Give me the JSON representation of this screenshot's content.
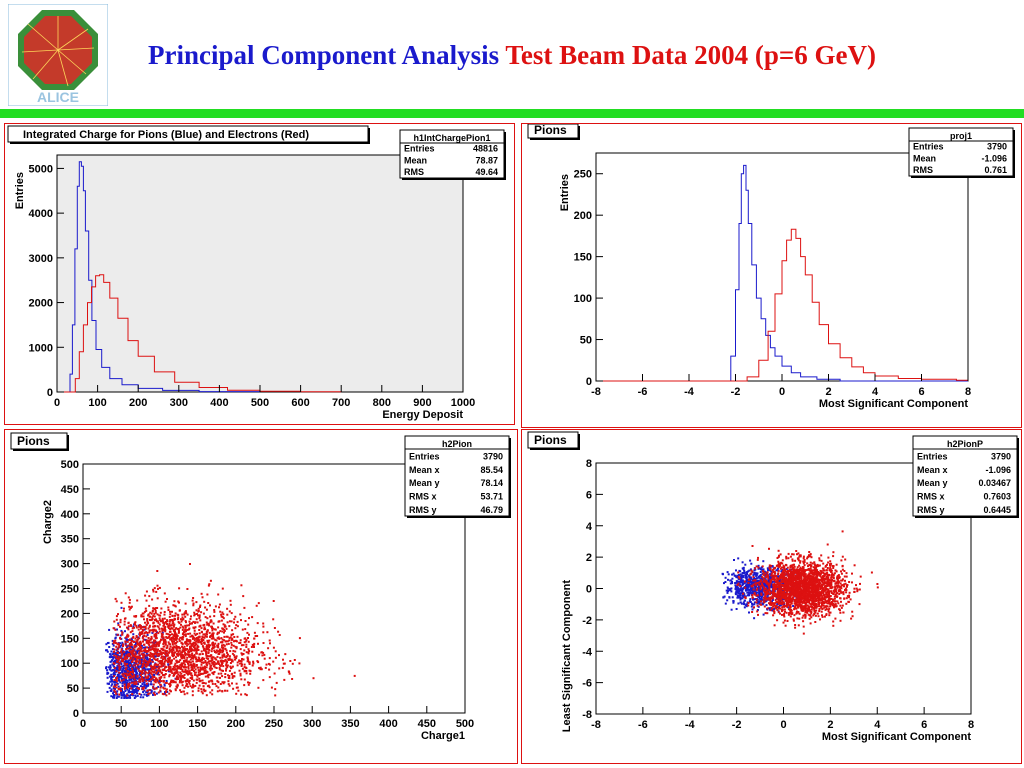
{
  "header": {
    "title_blue": "Principal Component Analysis",
    "title_red": "Test Beam Data 2004 (p=6 GeV)",
    "logo_text": "ALICE",
    "accent_bar_color": "#22dd22"
  },
  "colors": {
    "pion": "#1a1acc",
    "electron": "#dd1111",
    "frame": "#dd1111",
    "plot_bg_1": "#ececec"
  },
  "chart_data": [
    {
      "type": "line",
      "title": "Integrated Charge for Pions (Blue) and Electrons (Red)",
      "xlabel": "Energy Deposit",
      "ylabel": "Entries",
      "xlim": [
        0,
        1000
      ],
      "ylim": [
        0,
        5300
      ],
      "xticks": [
        "0",
        "100",
        "200",
        "300",
        "400",
        "500",
        "600",
        "700",
        "800",
        "900",
        "1000"
      ],
      "yticks": [
        "0",
        "1000",
        "2000",
        "3000",
        "4000",
        "5000"
      ],
      "stats": {
        "name": "h1IntChargePion1",
        "rows": [
          [
            "Entries",
            "48816"
          ],
          [
            "Mean",
            "78.87"
          ],
          [
            "RMS",
            "49.64"
          ]
        ]
      },
      "series": [
        {
          "color": "blue",
          "points": [
            [
              0,
              0
            ],
            [
              25,
              0
            ],
            [
              32,
              400
            ],
            [
              38,
              1500
            ],
            [
              44,
              3200
            ],
            [
              50,
              4600
            ],
            [
              55,
              5150
            ],
            [
              60,
              5050
            ],
            [
              65,
              4500
            ],
            [
              70,
              3600
            ],
            [
              78,
              2500
            ],
            [
              86,
              1600
            ],
            [
              96,
              950
            ],
            [
              110,
              550
            ],
            [
              130,
              300
            ],
            [
              160,
              160
            ],
            [
              200,
              80
            ],
            [
              260,
              35
            ],
            [
              350,
              10
            ],
            [
              500,
              0
            ]
          ]
        },
        {
          "color": "red",
          "points": [
            [
              0,
              0
            ],
            [
              35,
              0
            ],
            [
              45,
              300
            ],
            [
              55,
              900
            ],
            [
              65,
              1500
            ],
            [
              75,
              2000
            ],
            [
              85,
              2350
            ],
            [
              95,
              2600
            ],
            [
              105,
              2620
            ],
            [
              115,
              2450
            ],
            [
              130,
              2100
            ],
            [
              150,
              1650
            ],
            [
              175,
              1150
            ],
            [
              200,
              800
            ],
            [
              240,
              450
            ],
            [
              290,
              220
            ],
            [
              350,
              100
            ],
            [
              420,
              40
            ],
            [
              500,
              15
            ],
            [
              600,
              5
            ],
            [
              700,
              0
            ]
          ]
        }
      ]
    },
    {
      "type": "line",
      "title": "Pions",
      "xlabel": "Most Significant Component",
      "ylabel": "Entries",
      "xlim": [
        -8,
        8
      ],
      "ylim": [
        0,
        275
      ],
      "xticks": [
        "-8",
        "-6",
        "-4",
        "-2",
        "0",
        "2",
        "4",
        "6",
        "8"
      ],
      "yticks": [
        "0",
        "50",
        "100",
        "150",
        "200",
        "250"
      ],
      "stats": {
        "name": "proj1",
        "rows": [
          [
            "Entries",
            "3790"
          ],
          [
            "Mean",
            "-1.096"
          ],
          [
            "RMS",
            "0.761"
          ]
        ]
      },
      "series": [
        {
          "color": "blue",
          "points": [
            [
              -8,
              0
            ],
            [
              -2.4,
              0
            ],
            [
              -2.2,
              30
            ],
            [
              -2.0,
              110
            ],
            [
              -1.85,
              190
            ],
            [
              -1.75,
              250
            ],
            [
              -1.65,
              260
            ],
            [
              -1.55,
              230
            ],
            [
              -1.45,
              190
            ],
            [
              -1.3,
              140
            ],
            [
              -1.1,
              100
            ],
            [
              -0.9,
              75
            ],
            [
              -0.7,
              55
            ],
            [
              -0.5,
              40
            ],
            [
              -0.3,
              30
            ],
            [
              0,
              18
            ],
            [
              0.4,
              10
            ],
            [
              0.8,
              5
            ],
            [
              1.5,
              2
            ],
            [
              2.5,
              0
            ],
            [
              8,
              0
            ]
          ]
        },
        {
          "color": "red",
          "points": [
            [
              -8,
              0
            ],
            [
              -2.0,
              0
            ],
            [
              -1.5,
              5
            ],
            [
              -1.0,
              25
            ],
            [
              -0.6,
              60
            ],
            [
              -0.3,
              105
            ],
            [
              0,
              145
            ],
            [
              0.2,
              170
            ],
            [
              0.4,
              183
            ],
            [
              0.6,
              172
            ],
            [
              0.8,
              150
            ],
            [
              1.0,
              128
            ],
            [
              1.3,
              95
            ],
            [
              1.6,
              68
            ],
            [
              2.0,
              45
            ],
            [
              2.5,
              28
            ],
            [
              3.0,
              17
            ],
            [
              3.5,
              10
            ],
            [
              4.0,
              6
            ],
            [
              5,
              3
            ],
            [
              6,
              2
            ],
            [
              7.5,
              1
            ],
            [
              8,
              0
            ]
          ]
        }
      ]
    },
    {
      "type": "scatter",
      "title": "Pions",
      "xlabel": "Charge1",
      "ylabel": "Charge2",
      "xlim": [
        0,
        500
      ],
      "ylim": [
        0,
        500
      ],
      "xticks": [
        "0",
        "50",
        "100",
        "150",
        "200",
        "250",
        "300",
        "350",
        "400",
        "450",
        "500"
      ],
      "yticks": [
        "0",
        "50",
        "100",
        "150",
        "200",
        "250",
        "300",
        "350",
        "400",
        "450",
        "500"
      ],
      "stats": {
        "name": "h2Pion",
        "rows": [
          [
            "Entries",
            "3790"
          ],
          [
            "Mean x",
            "85.54"
          ],
          [
            "Mean y",
            "78.14"
          ],
          [
            "RMS x",
            "53.71"
          ],
          [
            "RMS y",
            "46.79"
          ]
        ]
      },
      "series": [
        {
          "color": "blue",
          "n": 1000,
          "center": [
            60,
            80
          ],
          "spread": [
            22,
            40
          ],
          "range": [
            [
              30,
              500
            ],
            [
              30,
              500
            ]
          ]
        },
        {
          "color": "red",
          "n": 2400,
          "center": [
            120,
            120
          ],
          "spread": [
            55,
            50
          ],
          "range": [
            [
              40,
              500
            ],
            [
              35,
              500
            ]
          ]
        }
      ]
    },
    {
      "type": "scatter",
      "title": "Pions",
      "xlabel": "Most Significant Component",
      "ylabel": "Least Significant Component",
      "xlim": [
        -8,
        8
      ],
      "ylim": [
        -8,
        8
      ],
      "xticks": [
        "-8",
        "-6",
        "-4",
        "-2",
        "0",
        "2",
        "4",
        "6",
        "8"
      ],
      "yticks": [
        "-8",
        "-6",
        "-4",
        "-2",
        "0",
        "2",
        "4",
        "6",
        "8"
      ],
      "stats": {
        "name": "h2PionP",
        "rows": [
          [
            "Entries",
            "3790"
          ],
          [
            "Mean x",
            "-1.096"
          ],
          [
            "Mean y",
            "0.03467"
          ],
          [
            "RMS x",
            "0.7603"
          ],
          [
            "RMS y",
            "0.6445"
          ]
        ]
      },
      "series": [
        {
          "color": "blue",
          "n": 900,
          "center": [
            -1.0,
            0.1
          ],
          "spread": [
            0.75,
            0.6
          ],
          "range": [
            [
              -2.6,
              8
            ],
            [
              -8,
              8
            ]
          ]
        },
        {
          "color": "red",
          "n": 2200,
          "center": [
            0.8,
            0.0
          ],
          "spread": [
            0.9,
            0.85
          ],
          "range": [
            [
              -2.0,
              8
            ],
            [
              -5,
              6
            ]
          ]
        }
      ]
    }
  ]
}
